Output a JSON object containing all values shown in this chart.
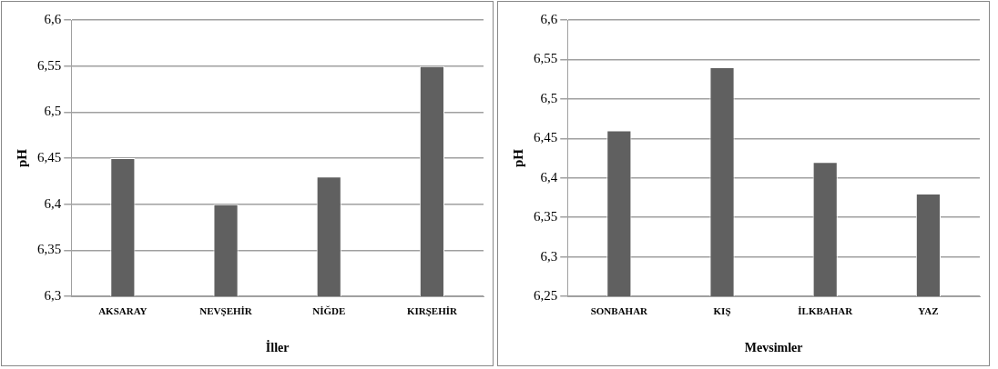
{
  "chart_data": [
    {
      "type": "bar",
      "xlabel": "İller",
      "ylabel": "pH",
      "categories": [
        "AKSARAY",
        "NEVŞEHİR",
        "NİĞDE",
        "KIRŞEHİR"
      ],
      "values": [
        6.45,
        6.4,
        6.43,
        6.55
      ],
      "color": "#606060",
      "ylim": [
        6.3,
        6.6
      ],
      "yticks": [
        {
          "value": 6.3,
          "label": "6,3"
        },
        {
          "value": 6.35,
          "label": "6,35"
        },
        {
          "value": 6.4,
          "label": "6,4"
        },
        {
          "value": 6.45,
          "label": "6,45"
        },
        {
          "value": 6.5,
          "label": "6,5"
        },
        {
          "value": 6.55,
          "label": "6,55"
        },
        {
          "value": 6.6,
          "label": "6,6"
        }
      ],
      "grid": "y",
      "legend": false
    },
    {
      "type": "bar",
      "xlabel": "Mevsimler",
      "ylabel": "pH",
      "categories": [
        "SONBAHAR",
        "KIŞ",
        "İLKBAHAR",
        "YAZ"
      ],
      "values": [
        6.46,
        6.54,
        6.42,
        6.38
      ],
      "color": "#606060",
      "ylim": [
        6.25,
        6.6
      ],
      "yticks": [
        {
          "value": 6.25,
          "label": "6,25"
        },
        {
          "value": 6.3,
          "label": "6,3"
        },
        {
          "value": 6.35,
          "label": "6,35"
        },
        {
          "value": 6.4,
          "label": "6,4"
        },
        {
          "value": 6.45,
          "label": "6,45"
        },
        {
          "value": 6.5,
          "label": "6,5"
        },
        {
          "value": 6.55,
          "label": "6,55"
        },
        {
          "value": 6.6,
          "label": "6,6"
        }
      ],
      "grid": "y",
      "legend": false
    }
  ]
}
